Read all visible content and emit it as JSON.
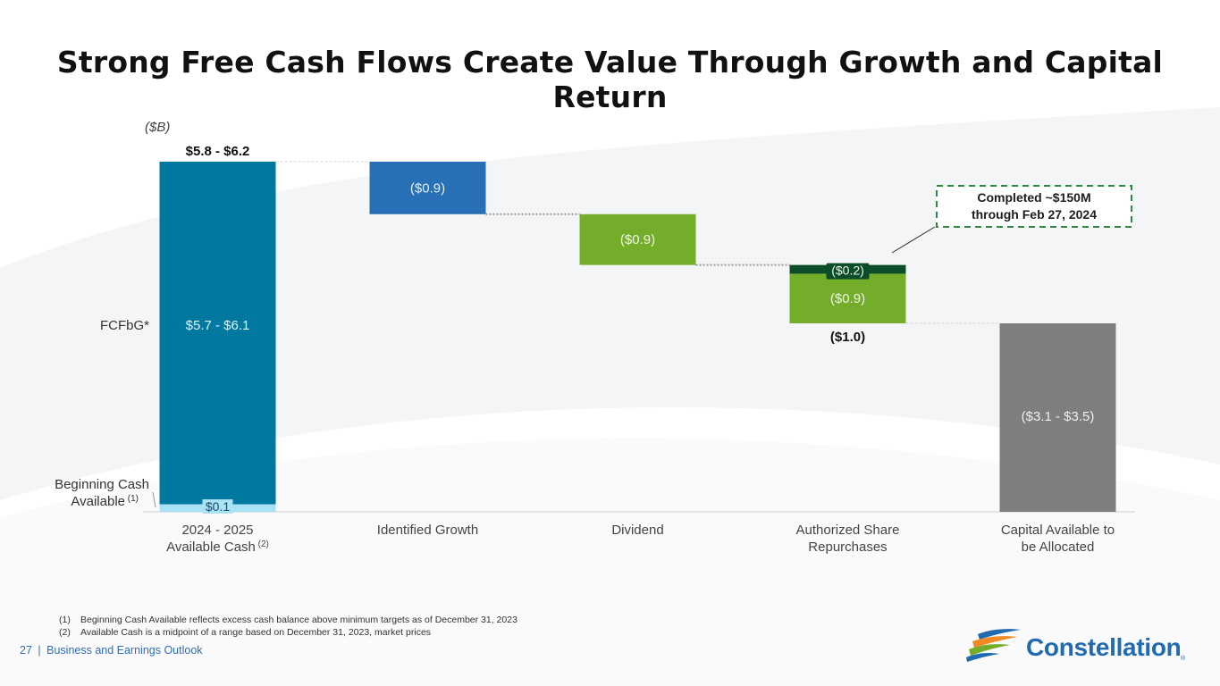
{
  "slide": {
    "title": "Strong Free Cash Flows Create Value Through Growth and Capital Return",
    "unit_label": "($B)",
    "footnotes": [
      {
        "num": "(1)",
        "text": "Beginning Cash Available reflects excess cash balance above minimum targets as of December 31, 2023"
      },
      {
        "num": "(2)",
        "text": "Available Cash is a midpoint of a range based on December 31, 2023, market prices"
      }
    ],
    "footer": {
      "page": "27",
      "separator": "|",
      "section": "Business and Earnings Outlook"
    },
    "logo_text": "Constellation",
    "logo_reg": "®"
  },
  "chart_data": {
    "type": "waterfall",
    "title": "Strong Free Cash Flows Create Value Through Growth and Capital Return",
    "ylabel": "($B)",
    "ylim": [
      0,
      6.0
    ],
    "categories": [
      {
        "label": "2024 - 2025",
        "label2": "Available Cash",
        "sup": "(2)"
      },
      {
        "label": "Identified Growth",
        "label2": "",
        "sup": ""
      },
      {
        "label": "Dividend",
        "label2": "",
        "sup": ""
      },
      {
        "label": "Authorized Share",
        "label2": "Repurchases",
        "sup": ""
      },
      {
        "label": "Capital Available to",
        "label2": "be Allocated",
        "sup": ""
      }
    ],
    "segments": [
      {
        "category": 0,
        "name": "Beginning Cash Available",
        "base": 0.0,
        "top": 0.13,
        "label": "$0.1",
        "color": "#a9e2f5",
        "label_color": "#1a4a66"
      },
      {
        "category": 0,
        "name": "FCFbG",
        "base": 0.13,
        "top": 6.0,
        "label": "$5.7 - $6.1",
        "color": "#00789f",
        "label_color": "#dff3fa"
      },
      {
        "category": 1,
        "name": "Identified Growth",
        "base": 5.1,
        "top": 6.0,
        "label": "($0.9)",
        "color": "#2770b6",
        "label_color": "#e6eef8"
      },
      {
        "category": 2,
        "name": "Dividend",
        "base": 4.23,
        "top": 5.1,
        "label": "($0.9)",
        "color": "#74ad2a",
        "label_color": "#f1f7e8"
      },
      {
        "category": 3,
        "name": "Share Repurchases Remaining",
        "base": 3.23,
        "top": 4.08,
        "label": "($0.9)",
        "color": "#74ad2a",
        "label_color": "#f1f7e8"
      },
      {
        "category": 3,
        "name": "Share Repurchases Completed",
        "base": 4.08,
        "top": 4.23,
        "label": "($0.2)",
        "color": "#0c4d28",
        "label_color": "#e9f3ec"
      },
      {
        "category": 4,
        "name": "Capital Available to be Allocated",
        "base": 0.0,
        "top": 3.23,
        "label": "($3.1 - $3.5)",
        "color": "#7e7e80",
        "label_color": "#eeeeee"
      }
    ],
    "totals": [
      {
        "category": 0,
        "value": 6.0,
        "label": "$5.8 - $6.2",
        "position": "above"
      },
      {
        "category": 3,
        "value": 3.23,
        "label": "($1.0)",
        "position": "below"
      }
    ],
    "side_labels": [
      {
        "text": "FCFbG*",
        "segment": 1
      },
      {
        "text": "Beginning Cash",
        "text2": "Available",
        "sup": "(1)",
        "segment": 0
      }
    ],
    "callout": {
      "line1": "Completed ~$150M",
      "line2": "through Feb 27, 2024",
      "color": "#2e8a3e",
      "segment": 5
    },
    "legend": "none",
    "grid": false
  }
}
